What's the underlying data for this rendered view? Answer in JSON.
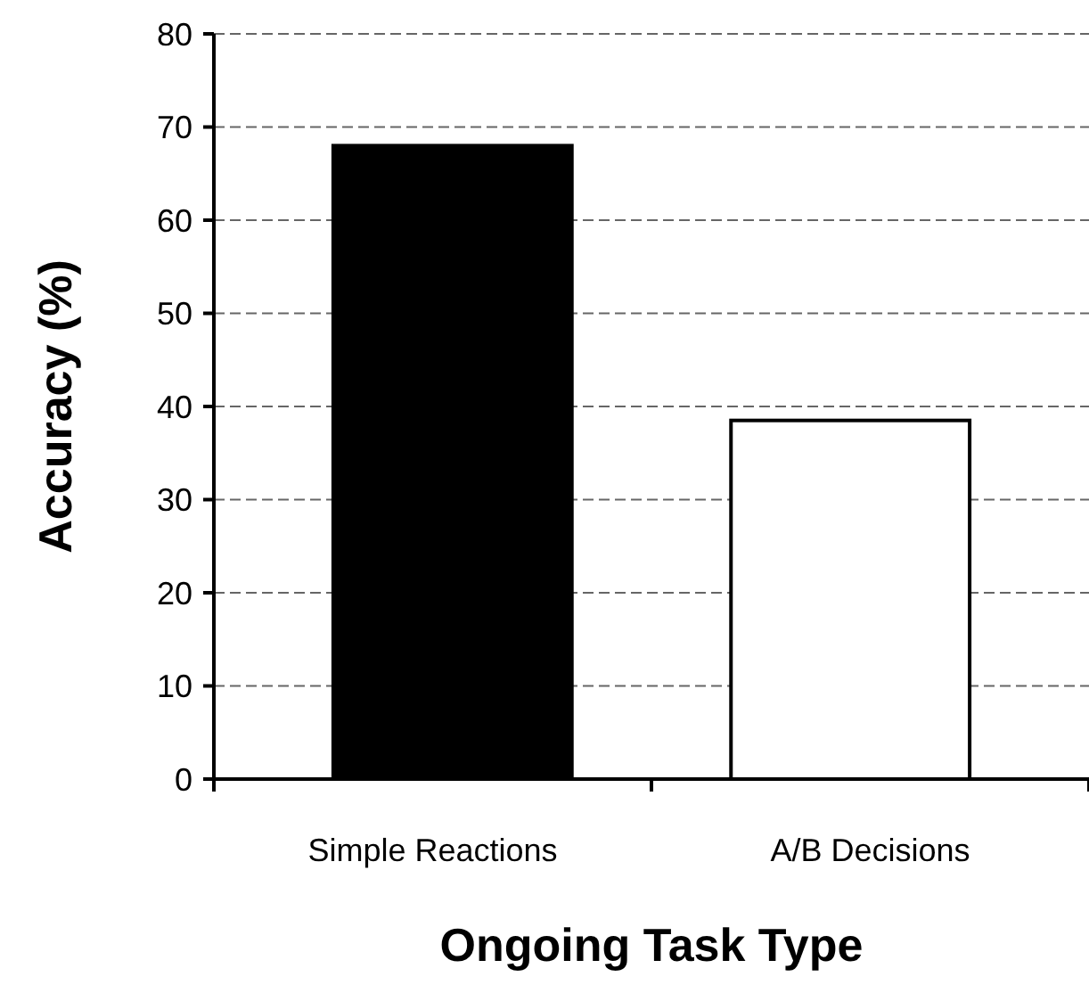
{
  "chart_data": {
    "type": "bar",
    "xlabel": "Ongoing Task Type",
    "ylabel": "Accuracy (%)",
    "categories": [
      "Simple Reactions",
      "A/B Decisions"
    ],
    "values": [
      68,
      38.5
    ],
    "colors": [
      "#000000",
      "#ffffff"
    ],
    "ylim": [
      0,
      80
    ],
    "yticks": [
      0,
      10,
      20,
      30,
      40,
      50,
      60,
      70,
      80
    ],
    "grid": "y"
  }
}
